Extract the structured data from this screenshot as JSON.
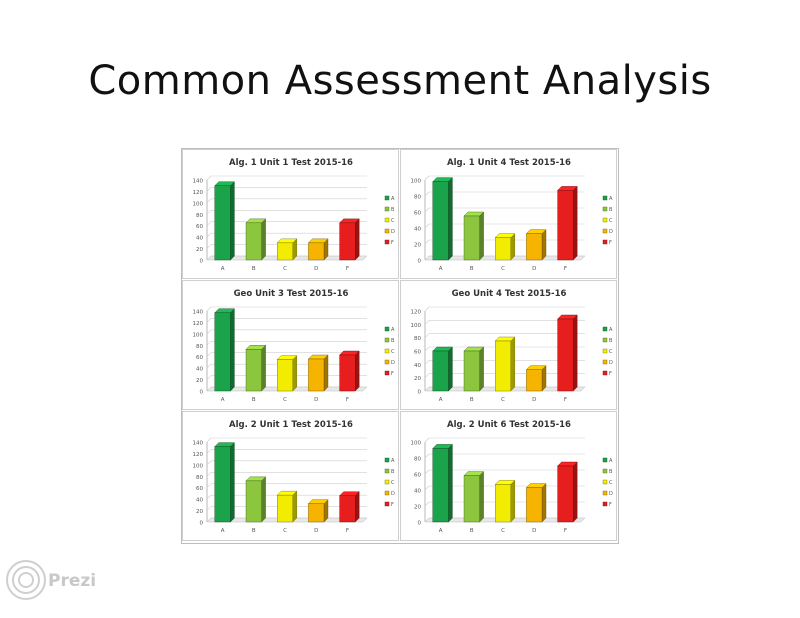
{
  "slide": {
    "title": "Common Assessment Analysis",
    "brand": "Prezi"
  },
  "colors": {
    "A": "#1aa34a",
    "B": "#8cc63f",
    "C": "#f2ec00",
    "D": "#f6b400",
    "F": "#e61e1e"
  },
  "chart_data": [
    {
      "type": "bar",
      "title": "Alg. 1 Unit 1 Test 2015-16",
      "categories": [
        "A",
        "B",
        "C",
        "D",
        "F"
      ],
      "values": [
        130,
        65,
        30,
        30,
        65
      ],
      "ylim": [
        0,
        140
      ],
      "yticks": [
        0,
        20,
        40,
        60,
        80,
        100,
        120,
        140
      ],
      "legend": [
        "A",
        "B",
        "C",
        "D",
        "F"
      ],
      "legend_position": "right",
      "grid": true
    },
    {
      "type": "bar",
      "title": "Alg. 1 Unit 4 Test 2015-16",
      "categories": [
        "A",
        "B",
        "C",
        "D",
        "F"
      ],
      "values": [
        98,
        55,
        28,
        33,
        87
      ],
      "ylim": [
        0,
        100
      ],
      "yticks": [
        0,
        20,
        40,
        60,
        80,
        100
      ],
      "legend": [
        "A",
        "B",
        "C",
        "D",
        "F"
      ],
      "legend_position": "right",
      "grid": true
    },
    {
      "type": "bar",
      "title": "Geo Unit 3 Test 2015-16",
      "categories": [
        "A",
        "B",
        "C",
        "D",
        "F"
      ],
      "values": [
        137,
        73,
        55,
        56,
        63
      ],
      "ylim": [
        0,
        140
      ],
      "yticks": [
        0,
        20,
        40,
        60,
        80,
        100,
        120,
        140
      ],
      "legend": [
        "A",
        "B",
        "C",
        "D",
        "F"
      ],
      "legend_position": "right",
      "grid": true
    },
    {
      "type": "bar",
      "title": "Geo Unit 4 Test 2015-16",
      "categories": [
        "A",
        "B",
        "C",
        "D",
        "F"
      ],
      "values": [
        60,
        60,
        75,
        32,
        108
      ],
      "ylim": [
        0,
        120
      ],
      "yticks": [
        0,
        20,
        40,
        60,
        80,
        100,
        120
      ],
      "legend": [
        "A",
        "B",
        "C",
        "D",
        "F"
      ],
      "legend_position": "right",
      "grid": true
    },
    {
      "type": "bar",
      "title": "Alg. 2 Unit 1 Test 2015-16",
      "categories": [
        "A",
        "B",
        "C",
        "D",
        "F"
      ],
      "values": [
        132,
        72,
        47,
        32,
        46
      ],
      "ylim": [
        0,
        140
      ],
      "yticks": [
        0,
        20,
        40,
        60,
        80,
        100,
        120,
        140
      ],
      "legend": [
        "A",
        "B",
        "C",
        "D",
        "F"
      ],
      "legend_position": "right",
      "grid": true
    },
    {
      "type": "bar",
      "title": "Alg. 2 Unit 6 Test 2015-16",
      "categories": [
        "A",
        "B",
        "C",
        "D",
        "F"
      ],
      "values": [
        92,
        58,
        47,
        43,
        70
      ],
      "ylim": [
        0,
        100
      ],
      "yticks": [
        0,
        20,
        40,
        60,
        80,
        100
      ],
      "legend": [
        "A",
        "B",
        "C",
        "D",
        "F"
      ],
      "legend_position": "right",
      "grid": true
    }
  ]
}
